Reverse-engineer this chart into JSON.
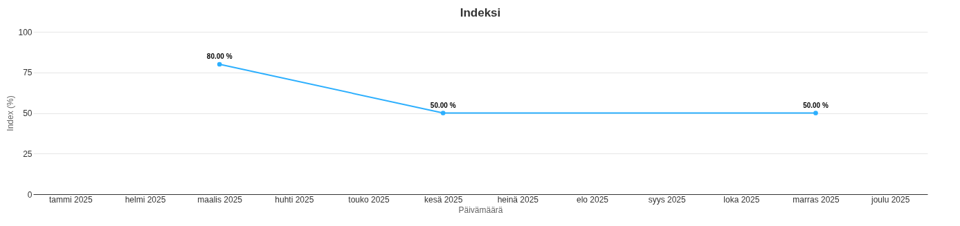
{
  "chart_data": {
    "type": "line",
    "title": "Indeksi",
    "xlabel": "Päivämäärä",
    "ylabel": "Index (%)",
    "categories": [
      "tammi 2025",
      "helmi 2025",
      "maalis 2025",
      "huhti 2025",
      "touko 2025",
      "kesä 2025",
      "heinä 2025",
      "elo 2025",
      "syys 2025",
      "loka 2025",
      "marras 2025",
      "joulu 2025"
    ],
    "series": [
      {
        "color": "#2caffe",
        "values": [
          null,
          null,
          80,
          null,
          null,
          50,
          null,
          null,
          null,
          null,
          50,
          null
        ],
        "value_labels": [
          null,
          null,
          "80.00 %",
          null,
          null,
          "50.00 %",
          null,
          null,
          null,
          null,
          "50.00 %",
          null
        ]
      }
    ],
    "ylim": [
      0,
      100
    ],
    "yticks": [
      0,
      25,
      50,
      75,
      100
    ],
    "grid": "y",
    "marker": "circle",
    "line_style": "solid"
  }
}
